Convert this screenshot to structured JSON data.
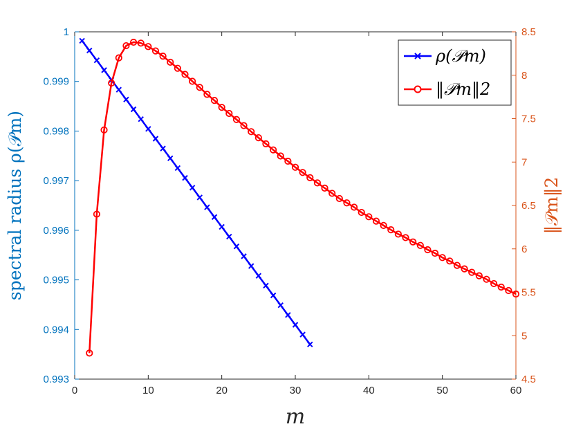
{
  "chart_data": {
    "type": "line",
    "xlabel": "m",
    "ylabel_left": "spectral radius ρ(𝒫m)",
    "ylabel_right": "‖𝒫m‖2",
    "xlim": [
      0,
      60
    ],
    "ylim_left": [
      0.993,
      1
    ],
    "ylim_right": [
      4.5,
      8.5
    ],
    "x_ticks": [
      "0",
      "10",
      "20",
      "30",
      "40",
      "50",
      "60"
    ],
    "y_left_ticks": [
      "0.993",
      "0.994",
      "0.995",
      "0.996",
      "0.997",
      "0.998",
      "0.999",
      "1"
    ],
    "y_right_ticks": [
      "4.5",
      "5",
      "5.5",
      "6",
      "6.5",
      "7",
      "7.5",
      "8",
      "8.5"
    ],
    "grid": false,
    "legend_position": "top-right",
    "colors": {
      "series1": "#0000FF",
      "series2": "#FF0000",
      "left_axis": "#0072BD",
      "right_axis": "#D95319",
      "x_axis": "#262626"
    },
    "series": [
      {
        "name": "ρ(𝒫m)",
        "axis": "left",
        "marker": "x",
        "x_start": 1,
        "x_end": 32,
        "y_start": 0.99982,
        "y_end": 0.9937
      },
      {
        "name": "‖𝒫m‖2",
        "axis": "right",
        "marker": "o",
        "x": [
          2,
          3,
          4,
          5,
          6,
          7,
          8,
          9,
          10,
          11,
          12,
          13,
          14,
          15,
          16,
          17,
          18,
          19,
          20,
          21,
          22,
          23,
          24,
          25,
          26,
          27,
          28,
          29,
          30,
          31,
          32,
          33,
          34,
          35,
          36,
          37,
          38,
          39,
          40,
          41,
          42,
          43,
          44,
          45,
          46,
          47,
          48,
          49,
          50,
          51,
          52,
          53,
          54,
          55,
          56,
          57,
          58,
          59,
          60
        ],
        "y": [
          4.8,
          6.4,
          7.37,
          7.91,
          8.2,
          8.34,
          8.38,
          8.37,
          8.33,
          8.28,
          8.22,
          8.15,
          8.08,
          8.01,
          7.93,
          7.86,
          7.78,
          7.71,
          7.63,
          7.56,
          7.49,
          7.42,
          7.35,
          7.28,
          7.21,
          7.14,
          7.07,
          7.01,
          6.94,
          6.88,
          6.82,
          6.76,
          6.7,
          6.64,
          6.58,
          6.53,
          6.48,
          6.42,
          6.37,
          6.32,
          6.27,
          6.22,
          6.17,
          6.13,
          6.08,
          6.04,
          5.99,
          5.95,
          5.9,
          5.86,
          5.81,
          5.77,
          5.73,
          5.69,
          5.65,
          5.6,
          5.56,
          5.52,
          5.48
        ]
      }
    ]
  }
}
